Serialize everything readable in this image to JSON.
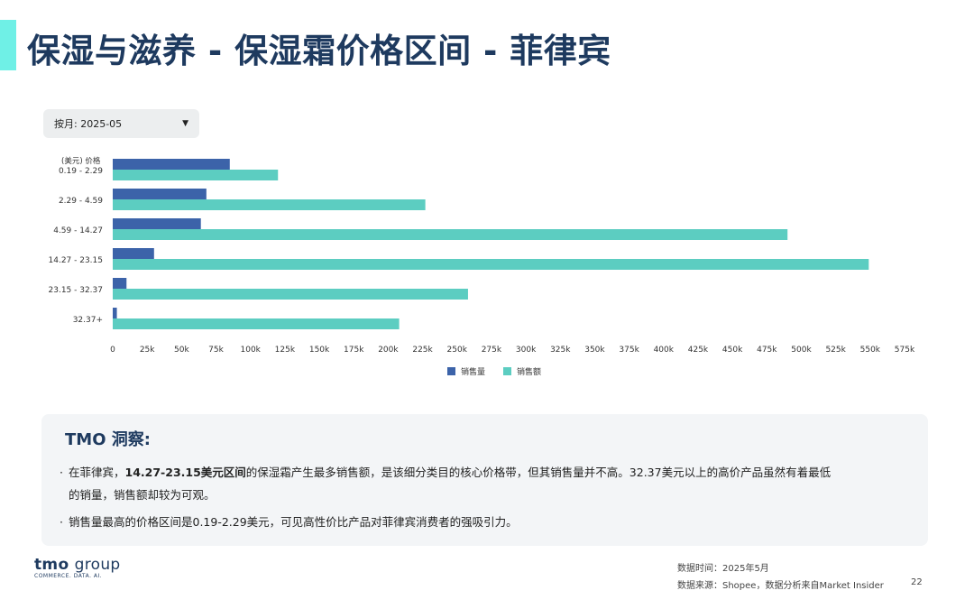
{
  "page": {
    "title": "保湿与滋养 - 保湿霜价格区间 - 菲律宾",
    "filter": {
      "label": "按月: 2025-05"
    },
    "insight": {
      "title": "TMO 洞察:",
      "bullets": [
        {
          "pre": "在菲律宾，",
          "bold": "14.27-23.15美元区间",
          "post": "的保湿霜产生最多销售额，是该细分类目的核心价格带，但其销售量并不高。32.37美元以上的高价产品虽然有着最低",
          "cont": "的销量，销售额却较为可观。"
        },
        {
          "text": "销售量最高的价格区间是0.19-2.29美元，可见高性价比产品对菲律宾消费者的强吸引力。"
        }
      ]
    },
    "logo": {
      "brand": "tmo",
      "group": "group",
      "tagline": "COMMERCE. DATA. AI."
    },
    "footer": {
      "date": "数据时间：2025年5月",
      "source": "数据来源：Shopee，数据分析来自Market Insider",
      "page_number": "22"
    }
  },
  "chart_data": {
    "type": "bar",
    "orientation": "horizontal",
    "ylabel": "(美元) 价格",
    "categories": [
      "0.19 - 2.29",
      "2.29 - 4.59",
      "4.59 - 14.27",
      "14.27 - 23.15",
      "23.15 - 32.37",
      "32.37+"
    ],
    "series": [
      {
        "name": "销售量",
        "color": "#3c63a9",
        "values": [
          85000,
          68000,
          64000,
          30000,
          10000,
          3000
        ]
      },
      {
        "name": "销售额",
        "color": "#5ccdc1",
        "values": [
          120000,
          227000,
          490000,
          549000,
          258000,
          208000
        ]
      }
    ],
    "xlim": [
      0,
      575000
    ],
    "xticks": [
      0,
      25000,
      50000,
      75000,
      100000,
      125000,
      150000,
      175000,
      200000,
      225000,
      250000,
      275000,
      300000,
      325000,
      350000,
      375000,
      400000,
      425000,
      450000,
      475000,
      500000,
      525000,
      550000,
      575000
    ],
    "xtick_labels": [
      "0",
      "25k",
      "50k",
      "75k",
      "100k",
      "125k",
      "150k",
      "175k",
      "200k",
      "225k",
      "250k",
      "275k",
      "300k",
      "325k",
      "350k",
      "375k",
      "400k",
      "425k",
      "450k",
      "475k",
      "500k",
      "525k",
      "550k",
      "575k"
    ],
    "grid": false,
    "legend": "bottom"
  }
}
